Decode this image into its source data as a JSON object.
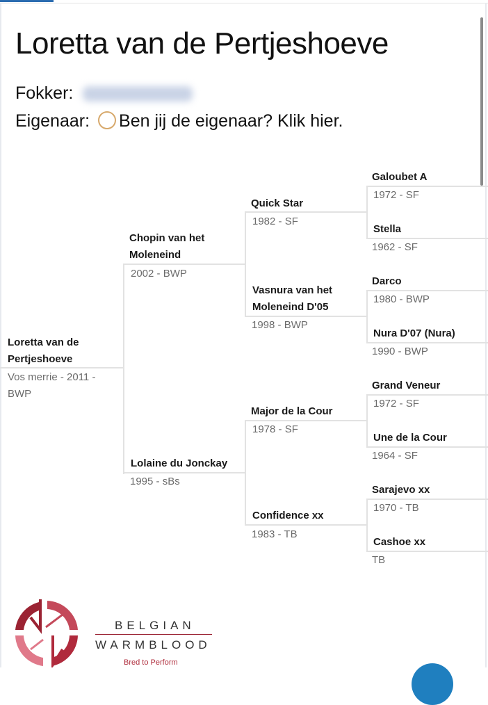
{
  "title": "Loretta van de Pertjeshoeve",
  "breeder_label": "Fokker:",
  "owner_label": "Eigenaar:",
  "owner_link": "Ben jij de eigenaar? Klik hier.",
  "pedigree": {
    "horse": {
      "name1": "Loretta van de",
      "name2": "Pertjeshoeve",
      "d1": "Vos merrie - 2011 -",
      "d2": "BWP"
    },
    "sire": {
      "name1": "Chopin van het",
      "name2": "Moleneind",
      "detail": "2002 - BWP"
    },
    "dam": {
      "name": "Lolaine du Jonckay",
      "detail": "1995 - sBs"
    },
    "ss": {
      "name": "Quick Star",
      "detail": "1982 - SF"
    },
    "sd": {
      "name1": "Vasnura van het",
      "name2": "Moleneind D'05",
      "detail": "1998 - BWP"
    },
    "ds": {
      "name": "Major de la Cour",
      "detail": "1978 - SF"
    },
    "dd": {
      "name": "Confidence xx",
      "detail": "1983 - TB"
    },
    "sss": {
      "name": "Galoubet A",
      "detail": "1972 - SF"
    },
    "ssd": {
      "name": "Stella",
      "detail": "1962 - SF"
    },
    "sds": {
      "name": "Darco",
      "detail": "1980 - BWP"
    },
    "sdd": {
      "name": "Nura D'07 (Nura)",
      "detail": "1990 - BWP"
    },
    "dss": {
      "name": "Grand Veneur",
      "detail": "1972 - SF"
    },
    "dsd": {
      "name": "Une de la Cour",
      "detail": "1964 - SF"
    },
    "dds": {
      "name": "Sarajevo xx",
      "detail": "1970 - TB"
    },
    "ddd": {
      "name": "Cashoe xx",
      "detail": "TB"
    }
  },
  "logo": {
    "line1": "BELGIAN",
    "line2": "WARMBLOOD",
    "tagline": "Bred to Perform"
  },
  "colors": {
    "accent": "#2b6cb0",
    "brand": "#9b2333",
    "owner_circle": "#d7a96c"
  }
}
